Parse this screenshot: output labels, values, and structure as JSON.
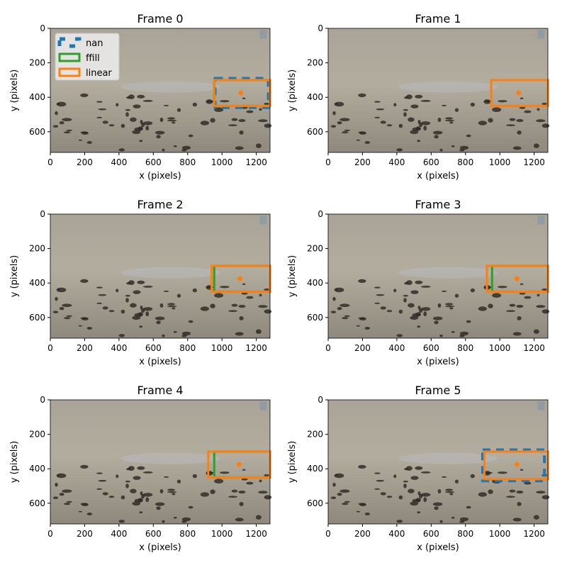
{
  "chart_data": {
    "type": "image-with-boxes",
    "xlabel": "x (pixels)",
    "ylabel": "y (pixels)",
    "xlim": [
      0,
      1280
    ],
    "ylim": [
      720,
      0
    ],
    "xticks": [
      0,
      200,
      400,
      600,
      800,
      1000,
      1200
    ],
    "yticks": [
      0,
      200,
      400,
      600
    ],
    "legend": {
      "placement": "upper-left",
      "entries": [
        {
          "label": "nan",
          "color": "#1f77b4",
          "style": "dashed"
        },
        {
          "label": "ffill",
          "color": "#2ca02c",
          "style": "solid"
        },
        {
          "label": "linear",
          "color": "#ff7f0e",
          "style": "solid"
        }
      ]
    },
    "panels": [
      {
        "title": "Frame 0",
        "point": [
          1110,
          375
        ],
        "boxes": [
          {
            "series": "nan",
            "box": [
              960,
              290,
              1270,
              460
            ]
          },
          {
            "series": "ffill",
            "box": [
              955,
              300,
              1280,
              450
            ]
          },
          {
            "series": "linear",
            "box": [
              955,
              300,
              1280,
              450
            ]
          }
        ]
      },
      {
        "title": "Frame 1",
        "point": [
          1110,
          375
        ],
        "boxes": [
          {
            "series": "linear",
            "box": [
              950,
              300,
              1280,
              450
            ]
          }
        ]
      },
      {
        "title": "Frame 2",
        "point": [
          1105,
          375
        ],
        "boxes": [
          {
            "series": "ffill",
            "box": [
              955,
              300,
              1280,
              450
            ]
          },
          {
            "series": "linear",
            "box": [
              940,
              300,
              1280,
              450
            ]
          }
        ]
      },
      {
        "title": "Frame 3",
        "point": [
          1100,
          375
        ],
        "boxes": [
          {
            "series": "ffill",
            "box": [
              955,
              300,
              1280,
              450
            ]
          },
          {
            "series": "linear",
            "box": [
              925,
              300,
              1280,
              450
            ]
          }
        ]
      },
      {
        "title": "Frame 4",
        "point": [
          1100,
          375
        ],
        "boxes": [
          {
            "series": "ffill",
            "box": [
              955,
              300,
              1280,
              450
            ]
          },
          {
            "series": "linear",
            "box": [
              920,
              300,
              1280,
              450
            ]
          }
        ]
      },
      {
        "title": "Frame 5",
        "point": [
          1100,
          375
        ],
        "boxes": [
          {
            "series": "nan",
            "box": [
              900,
              290,
              1260,
              470
            ]
          },
          {
            "series": "linear",
            "box": [
              910,
              300,
              1280,
              460
            ]
          }
        ]
      }
    ]
  }
}
